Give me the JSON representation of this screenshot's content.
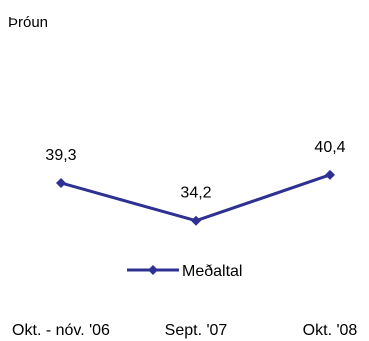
{
  "chart_data": {
    "type": "line",
    "title": "Þróun",
    "categories": [
      "Okt. - nóv. '06",
      "Sept. '07",
      "Okt. '08"
    ],
    "series": [
      {
        "name": "Meðaltal",
        "values": [
          39.3,
          34.2,
          40.4
        ],
        "labels": [
          "39,3",
          "34,2",
          "40,4"
        ],
        "color": "#2E3192"
      }
    ],
    "legend_position": "bottom",
    "grid": false
  }
}
